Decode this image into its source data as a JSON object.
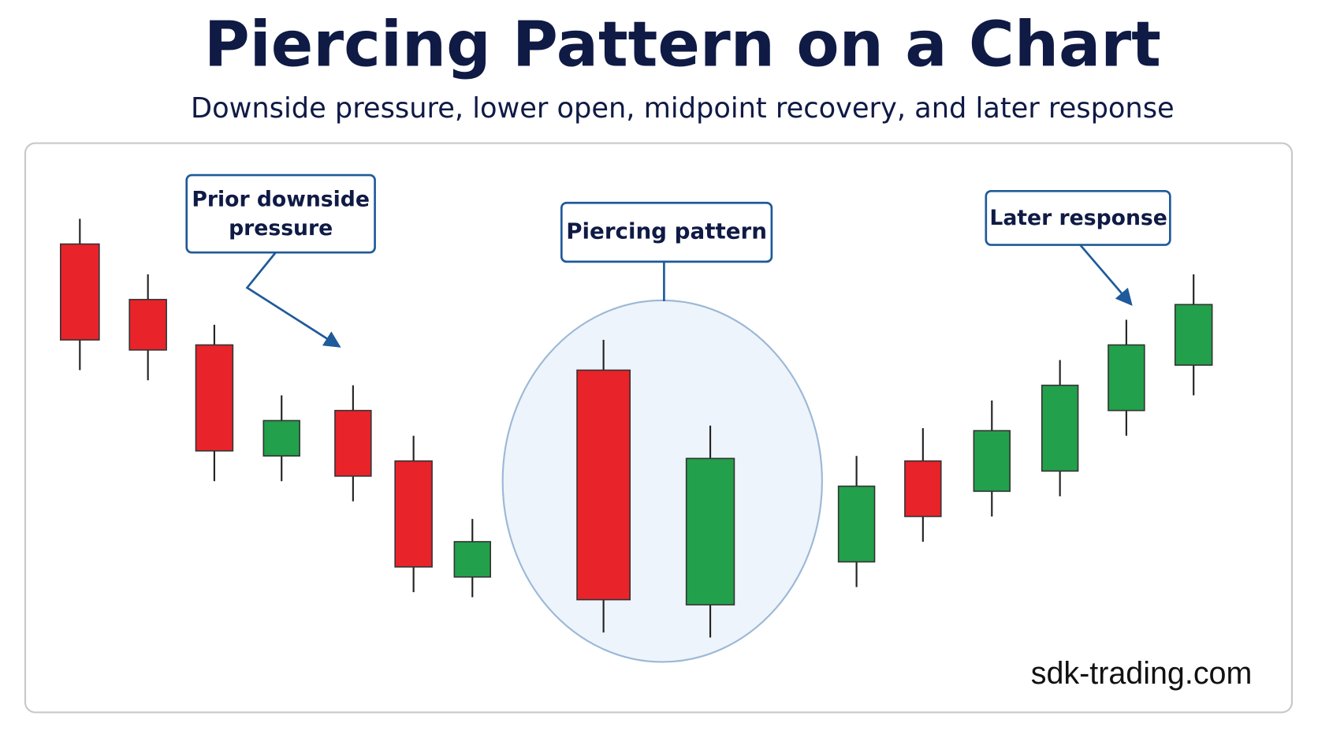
{
  "chart_data": {
    "type": "candlestick",
    "title": "Piercing Pattern on a Chart",
    "subtitle": "Downside pressure, lower open, midpoint recovery, and later response",
    "up_color": "#22a04b",
    "down_color": "#e8232a",
    "ylim": [
      0,
      100
    ],
    "open": [
      85,
      74,
      65,
      43,
      52,
      42,
      19,
      60,
      13.5,
      22,
      42,
      36,
      40,
      52,
      61
    ],
    "high": [
      90,
      79,
      69,
      55,
      57,
      47,
      30.5,
      66,
      49,
      43,
      48.5,
      54,
      62,
      70,
      79
    ],
    "low": [
      60,
      58,
      38,
      38,
      34,
      16,
      15,
      8,
      7,
      17,
      26,
      31,
      35,
      47,
      55
    ],
    "close": [
      66,
      64,
      44,
      50,
      39,
      21,
      26,
      14.5,
      42.5,
      37,
      31,
      48,
      57,
      65,
      73
    ],
    "annotations": [
      {
        "lines": [
          "Prior downside",
          "pressure"
        ]
      },
      {
        "lines": [
          "Piercing pattern"
        ]
      },
      {
        "lines": [
          "Later response"
        ]
      }
    ],
    "watermark": "sdk-trading.com"
  }
}
